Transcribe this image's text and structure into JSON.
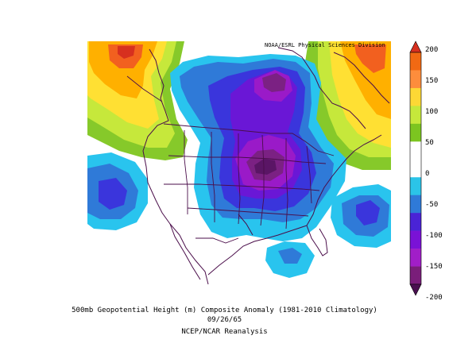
{
  "credit": "NOAA/ESRL Physical Sciences Division",
  "caption": {
    "line1": "500mb Geopotential Height (m) Composite Anomaly (1981-2010 Climatology)",
    "line2": "09/26/65",
    "line3": "NCEP/NCAR Reanalysis"
  },
  "colorbar": {
    "labels": [
      "200",
      "150",
      "100",
      "50",
      "0",
      "-50",
      "-100",
      "-150",
      "-200"
    ],
    "colors": [
      "#d7301f",
      "#f16913",
      "#fd8d3c",
      "#fdd835",
      "#c6e83b",
      "#7cc520",
      "#ffffff",
      "#ffffff",
      "#2bc4e8",
      "#2f7ad8",
      "#4a23d6",
      "#7a12d6",
      "#a11ec8",
      "#7a1e7a",
      "#4a1050"
    ]
  },
  "palette": {
    "pos150": "#f2601f",
    "pos100": "#ffb000",
    "pos75": "#ffe033",
    "pos50": "#c6e83b",
    "pos25": "#86c92a",
    "neg25": "#29c4ee",
    "neg50": "#2f7ad8",
    "neg75": "#3a35dc",
    "neg100": "#6a17d6",
    "neg125": "#9a1ac8",
    "neg150": "#7b2183",
    "neg200": "#5a1565",
    "outline": "#4a0d4a"
  }
}
